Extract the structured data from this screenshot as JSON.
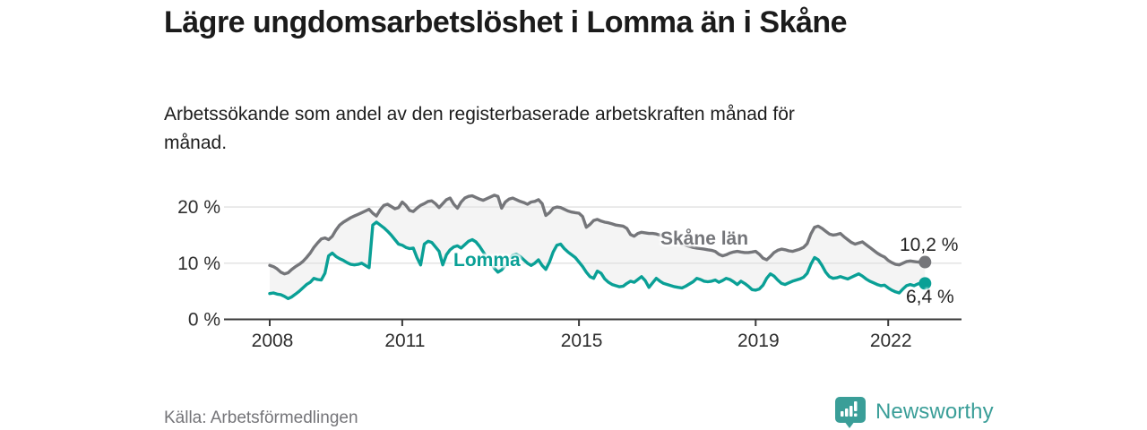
{
  "title": "Lägre ungdomsarbetslöshet i Lomma än i Skåne",
  "subtitle": "Arbetssökande som andel av den registerbaserade arbetskraften månad för månad.",
  "source": "Källa: Arbetsförmedlingen",
  "branding": {
    "name": "Newsworthy",
    "color": "#3a9e98"
  },
  "chart_data": {
    "type": "line",
    "title": "Lägre ungdomsarbetslöshet i Lomma än i Skåne",
    "xlabel": "",
    "ylabel": "",
    "unit": "%",
    "frequency": "monthly",
    "start_year": 2008,
    "ylim": [
      0,
      23
    ],
    "grid": "horizontal",
    "legend_position": "inline-labels",
    "x_ticks": [
      {
        "year": 2008,
        "label": "2008"
      },
      {
        "year": 2011,
        "label": "2011"
      },
      {
        "year": 2015,
        "label": "2015"
      },
      {
        "year": 2019,
        "label": "2019"
      },
      {
        "year": 2022,
        "label": "2022"
      }
    ],
    "y_ticks": [
      {
        "value": 0,
        "label": "0 %"
      },
      {
        "value": 10,
        "label": "10 %"
      },
      {
        "value": 20,
        "label": "20 %"
      }
    ],
    "colors": {
      "skane": "#75767a",
      "lomma": "#0aa096",
      "grid": "#e1e1e1",
      "axis": "#3a3a3a",
      "band_fill": "#f4f4f4",
      "tick_text": "#2e2e2e"
    },
    "series": [
      {
        "name": "Skåne län",
        "color": "#75767a",
        "end_label": "10,2 %",
        "end_value": 10.2,
        "values": [
          9.6,
          9.4,
          9.0,
          8.4,
          8.1,
          8.3,
          8.9,
          9.4,
          9.8,
          10.3,
          11.0,
          11.8,
          12.8,
          13.6,
          14.3,
          14.5,
          14.2,
          14.8,
          15.9,
          16.8,
          17.3,
          17.7,
          18.1,
          18.4,
          18.7,
          19.0,
          19.3,
          19.6,
          18.9,
          18.4,
          19.5,
          20.3,
          20.5,
          20.1,
          19.7,
          19.9,
          20.9,
          20.3,
          19.4,
          19.2,
          19.8,
          20.3,
          20.6,
          21.0,
          21.1,
          20.6,
          19.9,
          20.6,
          21.3,
          21.6,
          20.5,
          19.8,
          20.9,
          21.6,
          21.9,
          22.0,
          21.7,
          21.4,
          21.2,
          21.5,
          21.8,
          22.1,
          21.9,
          19.8,
          20.9,
          21.4,
          21.6,
          21.3,
          21.0,
          20.8,
          20.5,
          20.9,
          21.0,
          21.3,
          20.6,
          18.5,
          19.0,
          19.8,
          20.0,
          19.9,
          19.6,
          19.3,
          19.1,
          19.0,
          18.9,
          18.3,
          16.4,
          16.9,
          17.6,
          17.8,
          17.5,
          17.3,
          17.2,
          17.0,
          16.8,
          16.7,
          16.6,
          16.2,
          15.1,
          14.8,
          15.3,
          15.5,
          15.4,
          15.3,
          15.3,
          15.2,
          15.0,
          14.8,
          14.6,
          14.3,
          14.0,
          13.7,
          13.4,
          13.2,
          13.0,
          12.8,
          12.7,
          12.6,
          12.5,
          12.4,
          12.3,
          12.1,
          11.6,
          11.3,
          11.5,
          11.8,
          12.0,
          12.1,
          12.0,
          11.9,
          11.9,
          12.0,
          12.1,
          11.6,
          10.9,
          10.6,
          11.2,
          11.9,
          12.3,
          12.5,
          12.4,
          12.2,
          12.1,
          12.3,
          12.5,
          12.8,
          13.5,
          15.2,
          16.4,
          16.6,
          16.2,
          15.7,
          15.2,
          15.0,
          15.1,
          15.3,
          14.7,
          14.2,
          13.7,
          13.4,
          13.6,
          13.8,
          13.3,
          12.8,
          12.3,
          11.8,
          11.4,
          11.1,
          10.5,
          10.1,
          9.8,
          9.7,
          10.0,
          10.3,
          10.4,
          10.3,
          10.2,
          10.2,
          10.2
        ]
      },
      {
        "name": "Lomma",
        "color": "#0aa096",
        "end_label": "6,4 %",
        "end_value": 6.4,
        "values": [
          4.6,
          4.7,
          4.5,
          4.4,
          4.1,
          3.7,
          4.0,
          4.5,
          5.0,
          5.6,
          6.2,
          6.6,
          7.3,
          7.1,
          7.0,
          8.2,
          11.3,
          11.8,
          11.2,
          10.8,
          10.5,
          10.1,
          9.8,
          9.7,
          9.8,
          10.0,
          9.6,
          9.2,
          16.8,
          17.3,
          16.8,
          16.3,
          15.7,
          15.0,
          14.2,
          13.4,
          13.2,
          12.8,
          12.6,
          12.7,
          11.0,
          9.7,
          13.4,
          13.9,
          13.7,
          12.9,
          12.1,
          9.7,
          11.5,
          12.4,
          12.9,
          13.1,
          12.7,
          13.3,
          13.9,
          14.2,
          13.8,
          13.0,
          12.0,
          11.0,
          10.2,
          9.1,
          8.4,
          8.8,
          9.6,
          10.6,
          11.4,
          11.6,
          11.2,
          10.6,
          10.0,
          9.6,
          10.0,
          10.6,
          9.6,
          8.9,
          10.2,
          12.0,
          13.2,
          13.4,
          12.6,
          12.0,
          11.5,
          11.0,
          10.2,
          9.4,
          8.4,
          7.6,
          7.3,
          8.6,
          8.2,
          7.2,
          6.6,
          6.2,
          6.0,
          5.8,
          5.9,
          6.4,
          6.8,
          6.6,
          7.1,
          7.6,
          6.9,
          5.7,
          6.5,
          7.3,
          6.8,
          6.4,
          6.2,
          6.0,
          5.8,
          5.7,
          5.6,
          5.9,
          6.3,
          6.7,
          7.3,
          7.1,
          6.8,
          6.7,
          6.8,
          7.0,
          6.6,
          6.9,
          7.3,
          7.1,
          6.7,
          6.2,
          6.8,
          6.4,
          5.9,
          5.3,
          5.2,
          5.4,
          6.1,
          7.3,
          8.1,
          7.7,
          7.0,
          6.4,
          6.2,
          6.5,
          6.8,
          7.0,
          7.2,
          7.5,
          8.2,
          9.8,
          11.0,
          10.6,
          9.6,
          8.4,
          7.6,
          7.3,
          7.4,
          7.6,
          7.4,
          7.2,
          7.5,
          7.8,
          8.1,
          7.7,
          7.2,
          6.8,
          6.5,
          6.2,
          6.0,
          6.1,
          5.6,
          5.2,
          4.9,
          4.7,
          5.4,
          6.0,
          6.2,
          6.0,
          6.3,
          6.5,
          6.4
        ]
      }
    ]
  }
}
